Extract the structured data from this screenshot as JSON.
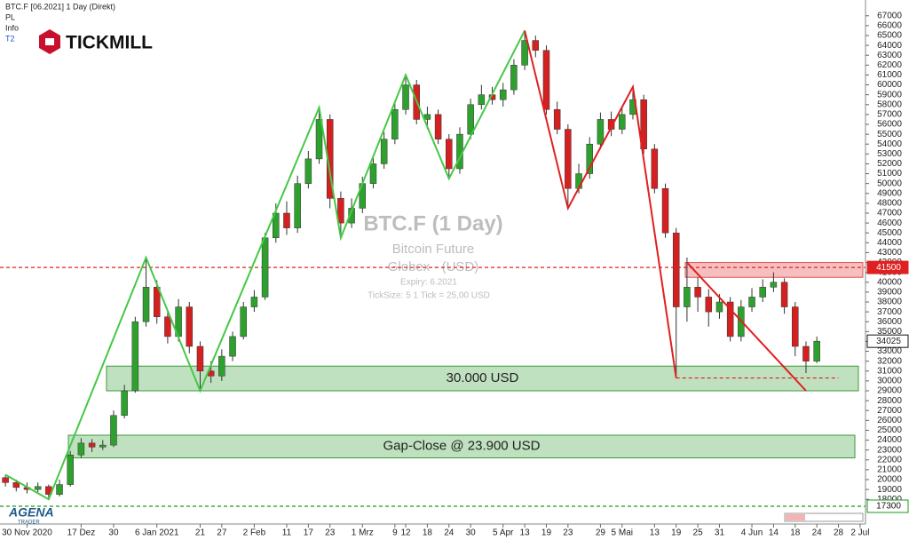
{
  "header": {
    "symbol": "BTC.F [06.2021] 1 Day (Direkt)",
    "items": [
      "PL",
      "Info"
    ],
    "link": "T2",
    "logo": "TICKMILL",
    "footer_logo": "AGENA",
    "footer_sub": "TRADER"
  },
  "watermark": {
    "title": "BTC.F (1 Day)",
    "name": "Bitcoin Future",
    "exchange": "Globex - (USD)",
    "expiry": "Expiry: 6.2021",
    "tick": "TickSize: 5   1 Tick = 25,00 USD"
  },
  "chart_data": {
    "type": "candlestick",
    "categories": [
      null,
      null,
      "30 Nov 2020",
      null,
      null,
      null,
      null,
      "17 Dez",
      null,
      null,
      "30",
      null,
      null,
      null,
      "6 Jan 2021",
      null,
      null,
      null,
      "21",
      null,
      "27",
      null,
      null,
      "2 Feb",
      null,
      null,
      "11",
      null,
      "17",
      null,
      "23",
      null,
      null,
      "1 Mrz",
      null,
      null,
      "9",
      "12",
      null,
      "18",
      null,
      "24",
      null,
      "30",
      null,
      null,
      "5 Apr",
      null,
      "13",
      null,
      "19",
      null,
      "23",
      null,
      null,
      "29",
      null,
      "5 Mai",
      null,
      null,
      "13",
      null,
      "19",
      null,
      "25",
      null,
      "31",
      null,
      null,
      "4 Jun",
      null,
      "14",
      null,
      "18",
      null,
      "24",
      null,
      "28",
      null,
      "2 Jul"
    ],
    "open": [
      20200,
      19700,
      19200,
      19000,
      19300,
      18500,
      19500,
      22500,
      23700,
      23300,
      23500,
      26500,
      29000,
      36000,
      39500,
      36500,
      34500,
      37500,
      33500,
      31000,
      30500,
      32500,
      34500,
      37500,
      38500,
      44500,
      47000,
      45500,
      50000,
      52500,
      56500,
      48500,
      46000,
      47500,
      50000,
      52000,
      54500,
      57500,
      60000,
      56500,
      57000,
      54500,
      51500,
      55000,
      58000,
      59000,
      58500,
      59500,
      62000,
      64500,
      63500,
      57500,
      55500,
      49500,
      51000,
      54000,
      56500,
      55500,
      57000,
      58500,
      53500,
      49500,
      45000,
      37500,
      39500,
      38500,
      37000,
      38000,
      34500,
      37500,
      38500,
      39500,
      40000,
      37500,
      33500,
      32000,
      null,
      null,
      null,
      null
    ],
    "high": [
      20500,
      20000,
      19700,
      19700,
      19500,
      20000,
      22900,
      24200,
      24100,
      24000,
      27000,
      29600,
      36500,
      42500,
      40200,
      37200,
      38300,
      38000,
      34000,
      32000,
      33200,
      35000,
      38000,
      39200,
      45000,
      48000,
      48200,
      50800,
      53300,
      57700,
      57000,
      49200,
      48500,
      50700,
      52800,
      55200,
      58200,
      61000,
      60500,
      57800,
      57500,
      55000,
      55700,
      58600,
      60000,
      59800,
      60200,
      62600,
      65500,
      65000,
      64000,
      58300,
      56000,
      52000,
      54700,
      57200,
      57300,
      57800,
      59800,
      59000,
      54000,
      50000,
      45500,
      42500,
      40500,
      39300,
      38800,
      38500,
      38200,
      39400,
      40300,
      41000,
      40400,
      38000,
      34000,
      34500,
      null,
      null,
      null,
      null
    ],
    "low": [
      19300,
      18800,
      18600,
      18700,
      18000,
      18300,
      19300,
      22200,
      22800,
      23000,
      23300,
      26200,
      28800,
      35500,
      35800,
      33800,
      34000,
      32800,
      29000,
      29800,
      30000,
      32000,
      34200,
      37000,
      38200,
      44000,
      44800,
      45000,
      49500,
      52000,
      47500,
      44500,
      45500,
      47000,
      49500,
      51500,
      54000,
      57000,
      56000,
      55500,
      54000,
      50500,
      51000,
      54500,
      57500,
      58000,
      57800,
      59000,
      61500,
      62800,
      57000,
      55000,
      47500,
      49000,
      50500,
      53500,
      54800,
      55000,
      56500,
      53000,
      49000,
      44500,
      30300,
      36000,
      37000,
      35500,
      36300,
      34000,
      34000,
      37000,
      38000,
      39000,
      36800,
      32500,
      30800,
      31800,
      null,
      null,
      null,
      null
    ],
    "close": [
      19700,
      19200,
      19000,
      19300,
      18500,
      19500,
      22500,
      23700,
      23300,
      23500,
      26500,
      29000,
      36000,
      39500,
      36500,
      34500,
      37500,
      33500,
      31000,
      30500,
      32500,
      34500,
      37500,
      38500,
      44500,
      47000,
      45500,
      50000,
      52500,
      56500,
      48500,
      46000,
      47500,
      50000,
      52000,
      54500,
      57500,
      60000,
      56500,
      57000,
      54500,
      51500,
      55000,
      58000,
      59000,
      58500,
      59500,
      62000,
      64500,
      63500,
      57500,
      55500,
      49500,
      51000,
      54000,
      56500,
      55500,
      57000,
      58500,
      53500,
      49500,
      45000,
      37500,
      39500,
      38500,
      37000,
      38000,
      34500,
      37500,
      38500,
      39500,
      40000,
      37500,
      33500,
      32000,
      34025,
      null,
      null,
      null,
      null
    ],
    "up_color": "#2ea02e",
    "down_color": "#d42020",
    "ylim": [
      15500,
      68600
    ],
    "yticks": [
      18000,
      19000,
      20000,
      21000,
      22000,
      23000,
      24000,
      25000,
      26000,
      27000,
      28000,
      29000,
      30000,
      31000,
      32000,
      33000,
      34000,
      35000,
      36000,
      37000,
      38000,
      39000,
      40000,
      41000,
      42000,
      43000,
      44000,
      45000,
      46000,
      47000,
      48000,
      49000,
      50000,
      51000,
      52000,
      53000,
      54000,
      55000,
      56000,
      57000,
      58000,
      59000,
      60000,
      61000,
      62000,
      63000,
      64000,
      65000,
      66000,
      67000
    ],
    "lines": [
      {
        "color": "#46c846",
        "dashed": false,
        "x": [
          0,
          4,
          13,
          18,
          29,
          31,
          37,
          41,
          48
        ],
        "values": [
          20500,
          18000,
          42500,
          29000,
          57700,
          44500,
          61000,
          50500,
          65500
        ]
      },
      {
        "color": "#e02020",
        "dashed": false,
        "x": [
          48,
          52,
          58,
          62
        ],
        "values": [
          65500,
          47500,
          59800,
          30300
        ]
      },
      {
        "color": "#e02020",
        "dashed": false,
        "x": [
          63,
          74
        ],
        "values": [
          42000,
          29000
        ]
      },
      {
        "color": "#e02020",
        "dashed": true,
        "x": [
          62,
          77
        ],
        "values": [
          30300,
          30300
        ]
      }
    ],
    "levels": [
      {
        "value": 41500,
        "color": "#e02020"
      },
      {
        "value": 17300,
        "color": "#1a9a1a"
      }
    ],
    "zones": [
      {
        "label": "",
        "ylim": [
          40500,
          42000
        ],
        "color": "#f4b4b4",
        "stroke": "#e05050"
      },
      {
        "label": "30.000 USD",
        "ylim": [
          29000,
          31500
        ],
        "color": "#b5dcb5",
        "stroke": "#3a9a3a"
      },
      {
        "label": "Gap-Close @ 23.900 USD",
        "ylim": [
          22200,
          24500
        ],
        "color": "#b5dcb5",
        "stroke": "#3a9a3a"
      }
    ]
  }
}
